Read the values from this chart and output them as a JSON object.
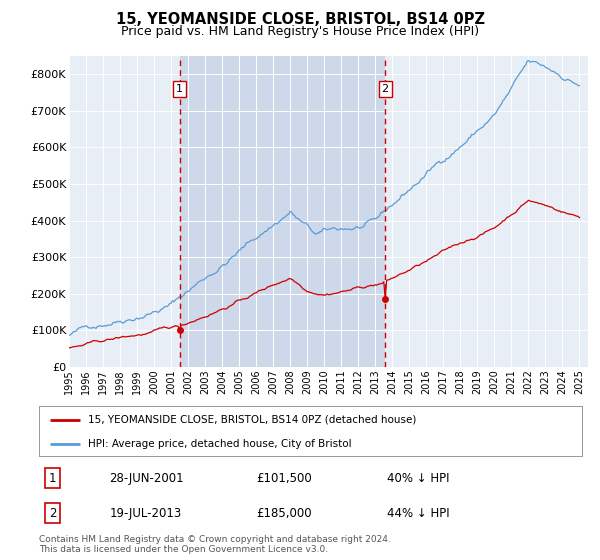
{
  "title": "15, YEOMANSIDE CLOSE, BRISTOL, BS14 0PZ",
  "subtitle": "Price paid vs. HM Land Registry's House Price Index (HPI)",
  "sale1_date": "28-JUN-2001",
  "sale1_price": 101500,
  "sale1_year": 2001.5,
  "sale1_hpi_diff": "40% ↓ HPI",
  "sale2_date": "19-JUL-2013",
  "sale2_price": 185000,
  "sale2_year": 2013.58,
  "sale2_hpi_diff": "44% ↓ HPI",
  "legend_label_price": "15, YEOMANSIDE CLOSE, BRISTOL, BS14 0PZ (detached house)",
  "legend_label_hpi": "HPI: Average price, detached house, City of Bristol",
  "footer": "Contains HM Land Registry data © Crown copyright and database right 2024.\nThis data is licensed under the Open Government Licence v3.0.",
  "price_color": "#cc0000",
  "hpi_color": "#5b9bd5",
  "vline_color": "#cc0000",
  "shade_color": "#cdd9ea",
  "ylim": [
    0,
    850000
  ],
  "yticks": [
    0,
    100000,
    200000,
    300000,
    400000,
    500000,
    600000,
    700000,
    800000
  ],
  "ytick_labels": [
    "£0",
    "£100K",
    "£200K",
    "£300K",
    "£400K",
    "£500K",
    "£600K",
    "£700K",
    "£800K"
  ],
  "plot_bg_color": "#e8eef5",
  "grid_color": "#ffffff"
}
